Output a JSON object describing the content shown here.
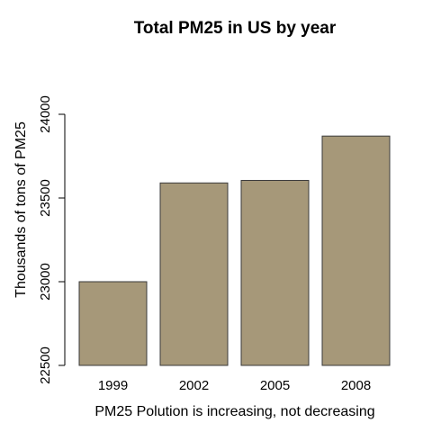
{
  "chart_data": {
    "type": "bar",
    "title": "Total PM25 in US by year",
    "xlabel": "PM25 Polution is increasing, not decreasing",
    "ylabel": "Thousands of tons of PM25",
    "categories": [
      "1999",
      "2002",
      "2005",
      "2008"
    ],
    "values": [
      23000,
      23590,
      23605,
      23870
    ],
    "ylim": [
      22500,
      24000
    ],
    "yticks": [
      "22500",
      "23000",
      "23500",
      "24000"
    ],
    "bar_color": "#a69879",
    "grid": false,
    "legend": "none"
  }
}
